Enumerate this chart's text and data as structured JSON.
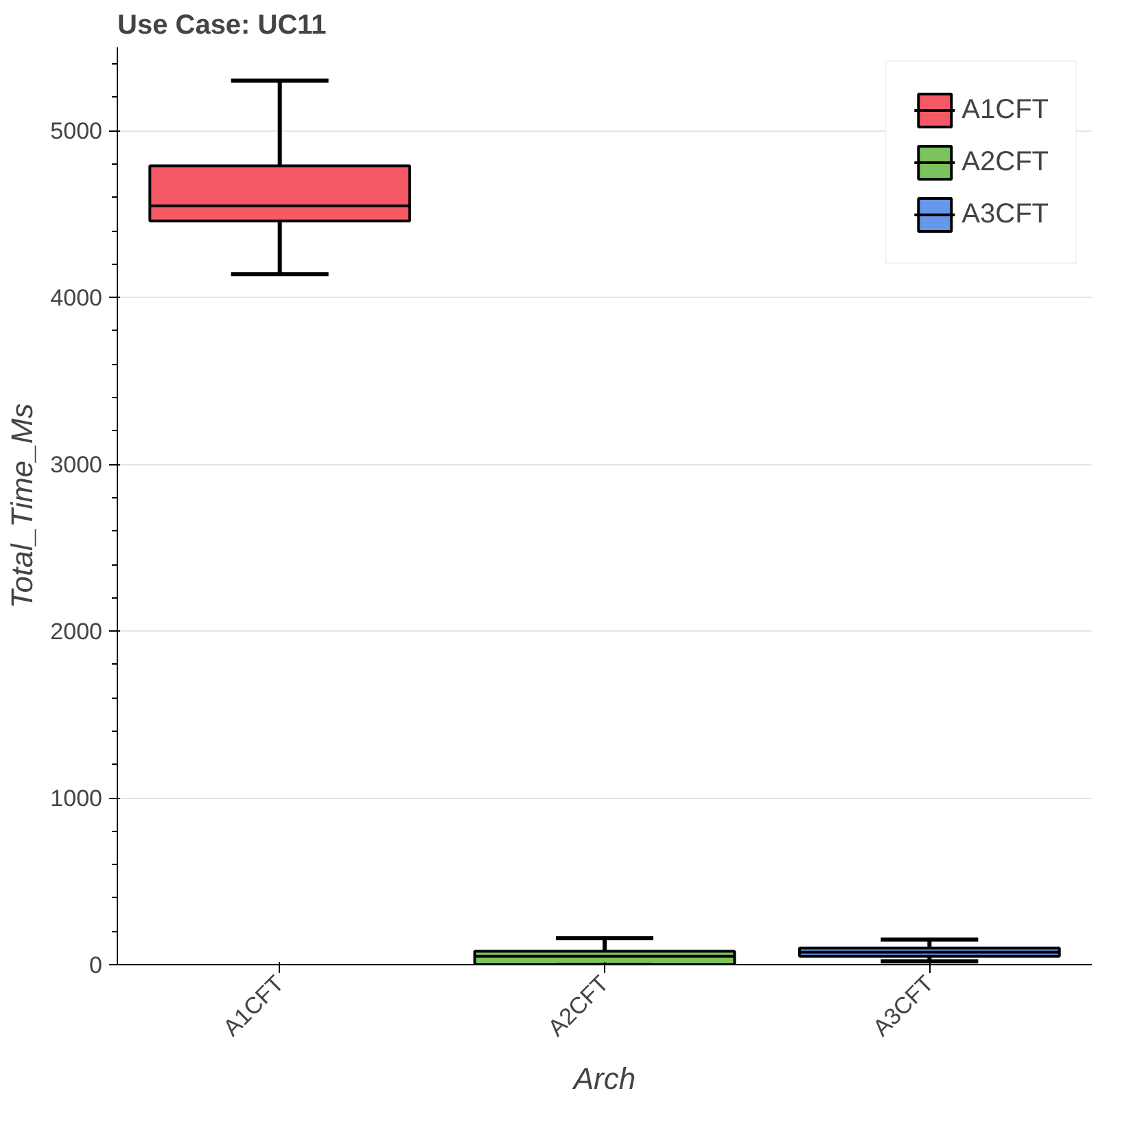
{
  "chart_data": {
    "type": "box",
    "title": "Use Case: UC11",
    "xlabel": "Arch",
    "ylabel": "Total_Time_Ms",
    "categories": [
      "A1CFT",
      "A2CFT",
      "A3CFT"
    ],
    "series": [
      {
        "name": "A1CFT",
        "color": "#f22f3f",
        "boxes": [
          {
            "low": 4140,
            "q1": 4460,
            "median": 4550,
            "q3": 4790,
            "high": 5300
          },
          null,
          null
        ]
      },
      {
        "name": "A2CFT",
        "color": "#5ab535",
        "boxes": [
          null,
          {
            "low": 0,
            "q1": 0,
            "median": 50,
            "q3": 80,
            "high": 160
          },
          null
        ]
      },
      {
        "name": "A3CFT",
        "color": "#3f7de6",
        "boxes": [
          null,
          null,
          {
            "low": 20,
            "q1": 50,
            "median": 75,
            "q3": 100,
            "high": 150
          }
        ]
      }
    ],
    "ylim": [
      0,
      5500
    ],
    "yticks": [
      0,
      1000,
      2000,
      3000,
      4000,
      5000
    ],
    "grid": "y",
    "legend": "top right"
  }
}
